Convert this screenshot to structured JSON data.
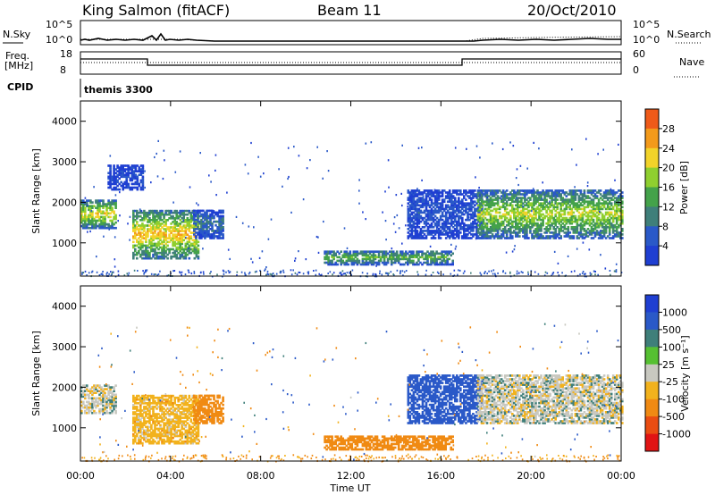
{
  "header": {
    "site": "King Salmon (fitACF)",
    "beam": "Beam 11",
    "date": "20/Oct/2010"
  },
  "sky_panel": {
    "left_label": "N.Sky",
    "right_label": "N.Search",
    "left_ticks": [
      "10^5",
      "10^0"
    ],
    "right_ticks": [
      "10^5",
      "10^0"
    ]
  },
  "freq_panel": {
    "left_label_1": "Freq.",
    "left_label_2": "[MHz]",
    "right_label": "Nave",
    "left_ticks": [
      "18",
      "8"
    ],
    "right_ticks": [
      "60",
      "0"
    ]
  },
  "cpid": {
    "label": "CPID",
    "value": "themis 3300"
  },
  "colors": {
    "power_scale": [
      "#1f3fd2",
      "#2a59c8",
      "#3f7f7a",
      "#44a24a",
      "#8fcf2f",
      "#f2d32a",
      "#f39a1b",
      "#ef5a19",
      "#e11414"
    ],
    "velocity_scale": [
      "#1f3fd2",
      "#2a59c8",
      "#3f7f7a",
      "#56c032",
      "#c8c8c0",
      "#f2b21d",
      "#f08a13",
      "#ea4d12",
      "#e11414"
    ]
  },
  "chart_data": [
    {
      "type": "heatmap",
      "title": "",
      "xlabel": "",
      "ylabel": "Slant Range [km]",
      "xlim": [
        0,
        24
      ],
      "ylim": [
        180,
        4500
      ],
      "x_ticks": [
        "00:00",
        "04:00",
        "08:00",
        "12:00",
        "16:00",
        "20:00",
        "00:00"
      ],
      "y_ticks": [
        "1000",
        "2000",
        "3000",
        "4000"
      ],
      "colorbar": {
        "label": "Power [dB]",
        "range": [
          0,
          32
        ],
        "ticks": [
          "4",
          "8",
          "12",
          "16",
          "20",
          "24",
          "28"
        ]
      },
      "regions": [
        {
          "t0": 0.0,
          "t1": 1.6,
          "r0": 1350,
          "r1": 2050,
          "level": 20
        },
        {
          "t0": 2.3,
          "t1": 5.2,
          "r0": 600,
          "r1": 1800,
          "level": 22
        },
        {
          "t0": 5.0,
          "t1": 6.3,
          "r0": 1100,
          "r1": 1800,
          "level": 8
        },
        {
          "t0": 1.2,
          "t1": 2.8,
          "r0": 2300,
          "r1": 2900,
          "level": 4
        },
        {
          "t0": 10.8,
          "t1": 16.5,
          "r0": 450,
          "r1": 800,
          "level": 14
        },
        {
          "t0": 14.5,
          "t1": 17.8,
          "r0": 1100,
          "r1": 2300,
          "level": 5
        },
        {
          "t0": 17.6,
          "t1": 24.0,
          "r0": 1100,
          "r1": 2300,
          "level": 18
        }
      ]
    },
    {
      "type": "heatmap",
      "title": "",
      "xlabel": "Time UT",
      "ylabel": "Slant Range [km]",
      "xlim": [
        0,
        24
      ],
      "ylim": [
        180,
        4500
      ],
      "x_ticks": [
        "00:00",
        "04:00",
        "08:00",
        "12:00",
        "16:00",
        "20:00",
        "00:00"
      ],
      "y_ticks": [
        "1000",
        "2000",
        "3000",
        "4000"
      ],
      "colorbar": {
        "label": "Velocity [m s⁻¹]",
        "ticks": [
          "1000",
          "500",
          "100",
          "25",
          "-25",
          "-100",
          "-500",
          "-1000"
        ]
      },
      "regions": [
        {
          "t0": 0.0,
          "t1": 1.6,
          "r0": 1350,
          "r1": 2050,
          "level": 0
        },
        {
          "t0": 2.3,
          "t1": 5.2,
          "r0": 600,
          "r1": 1800,
          "level": -60
        },
        {
          "t0": 5.0,
          "t1": 6.3,
          "r0": 1100,
          "r1": 1800,
          "level": -300
        },
        {
          "t0": 10.8,
          "t1": 16.5,
          "r0": 450,
          "r1": 800,
          "level": -150
        },
        {
          "t0": 14.5,
          "t1": 17.8,
          "r0": 1100,
          "r1": 2300,
          "level": 200
        },
        {
          "t0": 17.6,
          "t1": 24.0,
          "r0": 1100,
          "r1": 2300,
          "level": 0
        }
      ]
    }
  ]
}
